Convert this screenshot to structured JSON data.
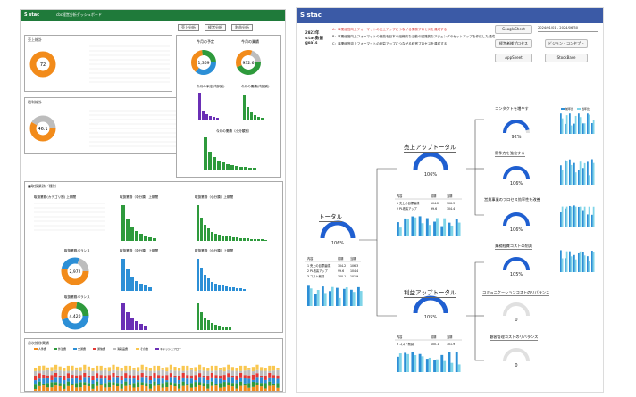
{
  "left": {
    "logo": "S stac",
    "title": "cbc経営分析ダッシュボード",
    "tabs": [
      "売上分析",
      "経営分析",
      "利益分析"
    ],
    "panel1_title": "売上総計",
    "panel1_center": "72",
    "panel2_title": "粗利総計",
    "panel2_center": "46.1",
    "panel3_title_a": "今月の予定",
    "panel3_title_b": "今月の業績",
    "panel3_a_center": "1,369",
    "panel3_b_center": "932.6",
    "panel3_chart_a": "今月の予定(内訳別)",
    "panel3_chart_b": "今月の業績(内訳別)",
    "panel3_chart_c": "今月の業績（小分類別）",
    "section2_title": "■取扱業務／種別",
    "s2_chart1": "取扱業務(カテゴリ別) 上期間",
    "s2_chart2": "取扱業務（中分類）上期間",
    "s2_chart3": "取扱業務（小分類）上期間",
    "s2_donut1_title": "取扱業務バランス",
    "s2_donut1_center": "2,972",
    "s2_donut2_title": "取扱業務バランス",
    "s2_donut2_center": "4,420",
    "s2_chart4": "取扱業務（中分類）上期間",
    "s2_chart5": "取扱業務（小分類）上期間",
    "bottom_title": "月次推移実績",
    "bottom_legend": [
      "人件費",
      "外注費",
      "交通費",
      "通信費",
      "消耗品費",
      "その他",
      "キャッシュフロー"
    ]
  },
  "right": {
    "logo": "S stac",
    "code": [
      "2023年",
      "stac数値",
      "goals"
    ],
    "lines": [
      "A：事業経営向上フォーマットの売上アップにつながる業務プロセスを達成する",
      "B：事業経営向上フォーマットの機能を日本の組織的な活動の回路的なアジェンダのセットアップを作成した達成",
      "C：事業経営向上フォーマットの利益アップにつながる経営プロセスを達成する"
    ],
    "buttons": {
      "google_sheet": "GoogleSheet",
      "process": "経営者様プロセス",
      "vision": "ビジョン・コンセプト",
      "app_sheet": "AppSheet",
      "stock_base": "StockBase"
    },
    "date_range": "2024/01/01 - 2024/06/30",
    "nodes": {
      "total": {
        "title": "トータル",
        "pct": "106%"
      },
      "sales": {
        "title": "売上アップトータル",
        "pct": "106%"
      },
      "profit": {
        "title": "利益アップトータル",
        "pct": "105%"
      },
      "contact": {
        "title": "コンタクトを増やす",
        "pct": "92%"
      },
      "compete": {
        "title": "競争力を強化する",
        "pct": "106%"
      },
      "process_eff": {
        "title": "営業事業のプロセス効率性を改善",
        "pct": "106%"
      },
      "cost": {
        "title": "業務経費コストの削減",
        "pct": "105%"
      },
      "comm": {
        "title": "コミュニケーションコストのリバランス",
        "pct": "0"
      },
      "admin": {
        "title": "顧客管理コストのリバランス",
        "pct": "0"
      }
    },
    "table_headers": [
      "内容",
      "前期",
      "当期"
    ],
    "table_rows": [
      [
        "1 売上の目標達成",
        "104.2",
        "106.3"
      ],
      [
        "2 PL改善アップ",
        "99.6",
        "104.4"
      ],
      [
        "3 コスト削減",
        "100.1",
        "101.9"
      ]
    ],
    "legend": [
      "前年比",
      "当年比"
    ]
  },
  "colors": {
    "left_header": "#1f7a3a",
    "right_header": "#3b5aa6",
    "gauge_blue": "#1f5fd1",
    "bar_blue": "#2c8fd6",
    "bar_green": "#2e9a3c",
    "bar_purple": "#6a2fb5",
    "donut_orange": "#f28b1a"
  }
}
